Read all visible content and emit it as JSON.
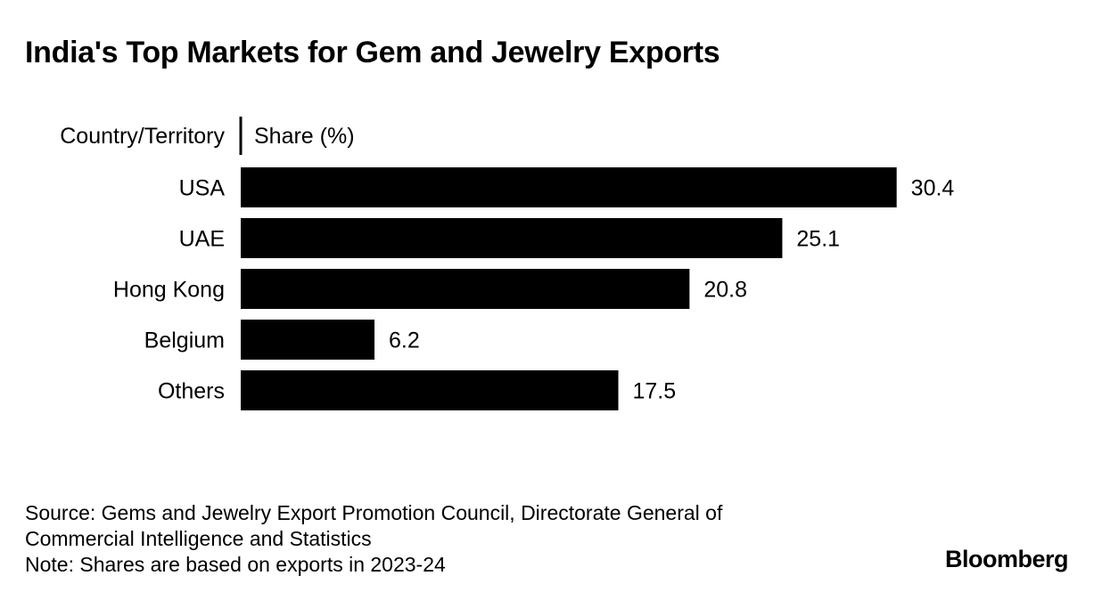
{
  "title": "India's Top Markets for Gem and Jewelry Exports",
  "chart_data": {
    "type": "bar",
    "orientation": "horizontal",
    "category_header": "Country/Territory",
    "value_header": "Share (%)",
    "categories": [
      "USA",
      "UAE",
      "Hong Kong",
      "Belgium",
      "Others"
    ],
    "values": [
      30.4,
      25.1,
      20.8,
      6.2,
      17.5
    ],
    "value_labels": [
      "30.4",
      "25.1",
      "20.8",
      "6.2",
      "17.5"
    ],
    "bar_color": "#000000",
    "grid": false,
    "legend": "none"
  },
  "footer": {
    "source_line1": "Source: Gems and Jewelry Export Promotion Council, Directorate General of",
    "source_line2": "Commercial Intelligence and Statistics",
    "note": "Note: Shares are based on exports in 2023-24"
  },
  "brand": "Bloomberg"
}
